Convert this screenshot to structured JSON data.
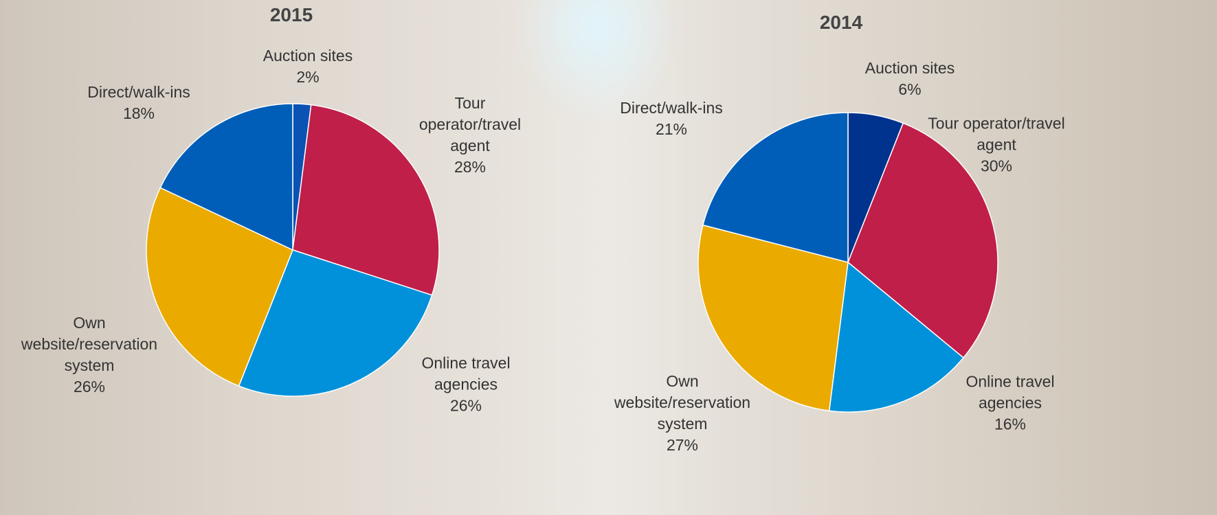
{
  "chart_data": [
    {
      "type": "pie",
      "title": "2015",
      "categories": [
        "Auction sites",
        "Tour operator/travel agent",
        "Online travel agencies",
        "Own website/reservation system",
        "Direct/walk-ins"
      ],
      "values": [
        2,
        28,
        26,
        26,
        18
      ],
      "value_labels": [
        "2%",
        "28%",
        "26%",
        "26%",
        "18%"
      ],
      "colors": [
        "#0a52b4",
        "#c01f4a",
        "#0091da",
        "#eaaa00",
        "#005eb8"
      ]
    },
    {
      "type": "pie",
      "title": "2014",
      "categories": [
        "Auction sites",
        "Tour operator/travel agent",
        "Online travel agencies",
        "Own website/reservation system",
        "Direct/walk-ins"
      ],
      "values": [
        6,
        30,
        16,
        27,
        21
      ],
      "value_labels": [
        "6%",
        "30%",
        "16%",
        "27%",
        "21%"
      ],
      "colors": [
        "#00338d",
        "#c01f4a",
        "#0091da",
        "#eaaa00",
        "#005eb8"
      ]
    }
  ]
}
